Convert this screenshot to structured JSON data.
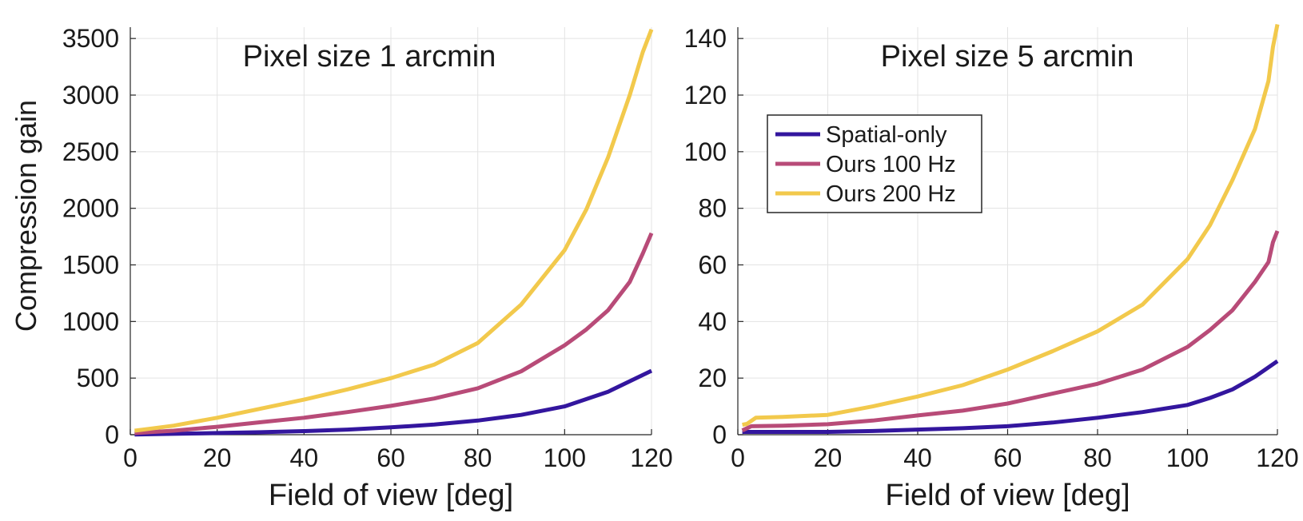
{
  "figure": {
    "shared_ylabel": "Compression gain"
  },
  "chart_data": [
    {
      "type": "line",
      "title": "Pixel size 1 arcmin",
      "xlabel": "Field of view [deg]",
      "ylabel": "Compression gain",
      "xlim": [
        0,
        120
      ],
      "ylim": [
        0,
        3600
      ],
      "xticks": [
        0,
        20,
        40,
        60,
        80,
        100,
        120
      ],
      "yticks": [
        0,
        500,
        1000,
        1500,
        2000,
        2500,
        3000,
        3500
      ],
      "grid": true,
      "legend": false,
      "series": [
        {
          "name": "Spatial-only",
          "color": "#33169e",
          "x": [
            1,
            10,
            20,
            30,
            40,
            50,
            60,
            70,
            80,
            90,
            100,
            110,
            120
          ],
          "values": [
            2,
            8,
            15,
            22,
            32,
            45,
            65,
            90,
            125,
            175,
            250,
            380,
            565
          ]
        },
        {
          "name": "Ours 100 Hz",
          "color": "#b84b78",
          "x": [
            1,
            10,
            20,
            30,
            40,
            50,
            60,
            70,
            80,
            90,
            100,
            105,
            110,
            115,
            118,
            120
          ],
          "values": [
            15,
            35,
            70,
            110,
            150,
            200,
            255,
            320,
            410,
            560,
            790,
            930,
            1100,
            1350,
            1600,
            1780
          ]
        },
        {
          "name": "Ours 200 Hz",
          "color": "#f2c94c",
          "x": [
            1,
            5,
            10,
            20,
            30,
            40,
            50,
            60,
            70,
            80,
            90,
            100,
            105,
            110,
            115,
            118,
            120
          ],
          "values": [
            35,
            55,
            80,
            150,
            230,
            310,
            400,
            500,
            620,
            810,
            1150,
            1630,
            1990,
            2450,
            3000,
            3380,
            3580
          ]
        }
      ]
    },
    {
      "type": "line",
      "title": "Pixel size 5 arcmin",
      "xlabel": "Field of view [deg]",
      "ylabel": "",
      "xlim": [
        0,
        120
      ],
      "ylim": [
        0,
        144
      ],
      "xticks": [
        0,
        20,
        40,
        60,
        80,
        100,
        120
      ],
      "yticks": [
        0,
        20,
        40,
        60,
        80,
        100,
        120,
        140
      ],
      "grid": true,
      "legend": true,
      "legend_position": "upper-left",
      "series": [
        {
          "name": "Spatial-only",
          "color": "#33169e",
          "x": [
            1,
            10,
            20,
            30,
            40,
            50,
            60,
            70,
            80,
            90,
            100,
            105,
            110,
            115,
            120
          ],
          "values": [
            1,
            1,
            1,
            1.3,
            1.8,
            2.3,
            3,
            4.3,
            6,
            8,
            10.5,
            13,
            16,
            20.5,
            26
          ]
        },
        {
          "name": "Ours 100 Hz",
          "color": "#b84b78",
          "x": [
            1,
            3,
            10,
            20,
            30,
            40,
            50,
            60,
            70,
            80,
            90,
            100,
            105,
            110,
            115,
            118,
            119,
            120
          ],
          "values": [
            1.5,
            3,
            3.2,
            3.7,
            5,
            6.8,
            8.5,
            11,
            14.5,
            18,
            23,
            31,
            37,
            44,
            54,
            61,
            68,
            72
          ]
        },
        {
          "name": "Ours 200 Hz",
          "color": "#f2c94c",
          "x": [
            1,
            2,
            4,
            10,
            20,
            30,
            40,
            50,
            60,
            70,
            80,
            90,
            100,
            105,
            110,
            115,
            118,
            119,
            120
          ],
          "values": [
            3.5,
            3.8,
            6,
            6.3,
            7,
            10,
            13.5,
            17.5,
            23,
            29.5,
            36.5,
            46,
            62,
            74,
            90,
            108,
            125,
            137,
            145
          ]
        }
      ]
    }
  ]
}
